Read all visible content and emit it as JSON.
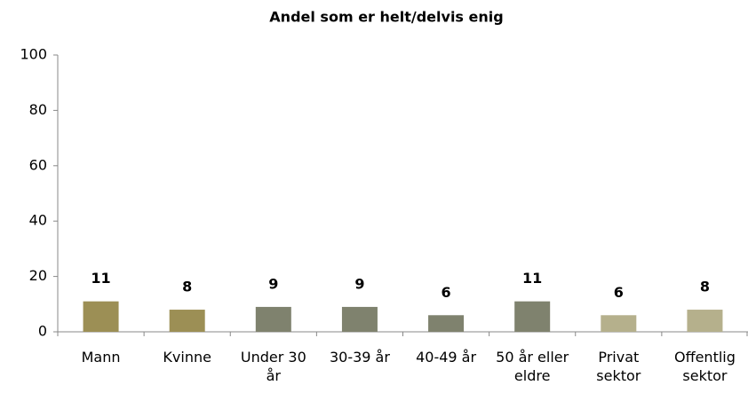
{
  "chart_data": {
    "type": "bar",
    "title": "Andel som er helt/delvis enig",
    "categories": [
      "Mann",
      "Kvinne",
      "Under 30 år",
      "30-39 år",
      "40-49 år",
      "50 år eller eldre",
      "Privat sektor",
      "Offentlig sektor"
    ],
    "values": [
      11,
      8,
      9,
      9,
      6,
      11,
      6,
      8
    ],
    "colors": [
      "#9c8f55",
      "#9c8f55",
      "#7f826e",
      "#7f826e",
      "#7f826e",
      "#7f826e",
      "#b5b08c",
      "#b5b08c"
    ],
    "ylim": [
      0,
      100
    ],
    "yticks": [
      0,
      20,
      40,
      60,
      80,
      100
    ],
    "grid": false
  }
}
